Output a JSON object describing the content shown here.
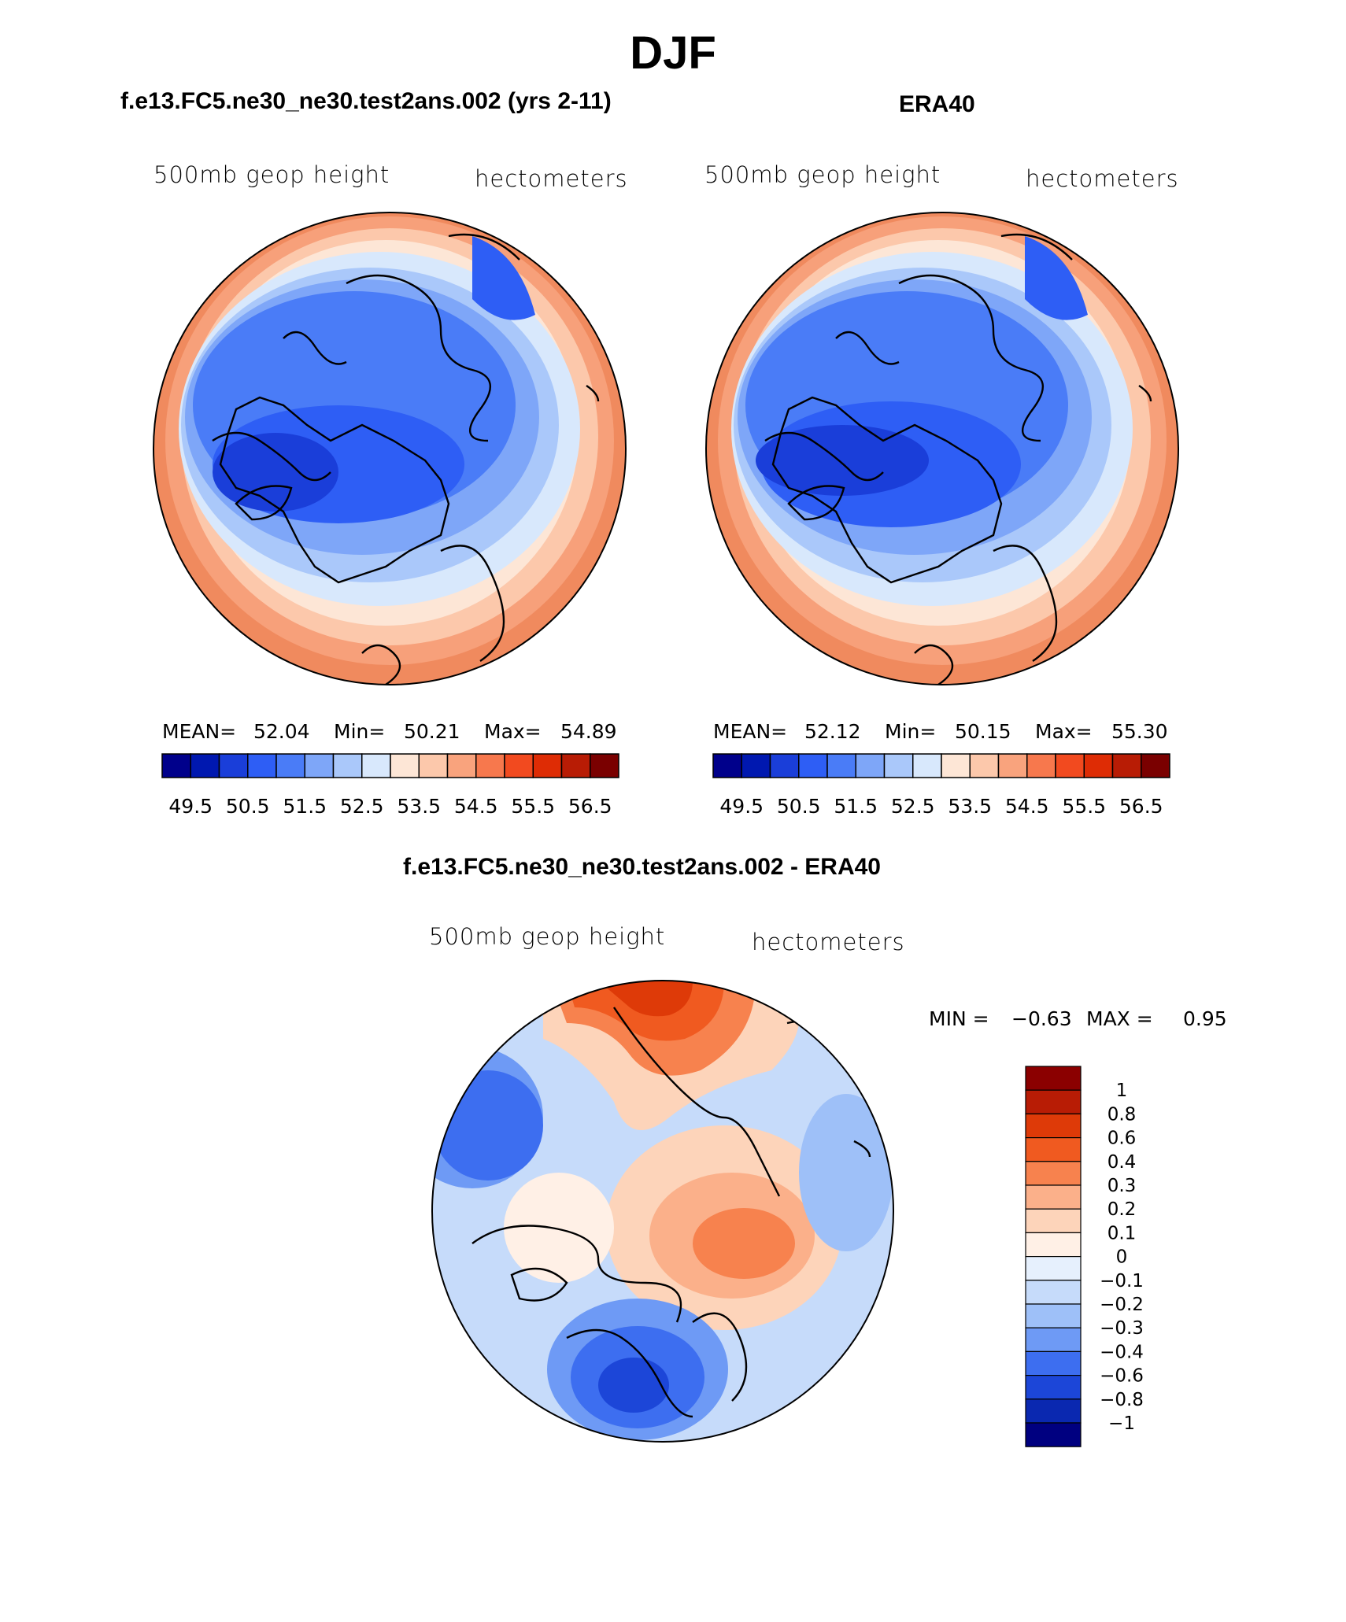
{
  "figure": {
    "title": "DJF",
    "diff_title": "f.e13.FC5.ne30_ne30.test2ans.002 - ERA40"
  },
  "panels": [
    {
      "title": "f.e13.FC5.ne30_ne30.test2ans.002 (yrs 2-11)",
      "variable": "500mb geop height",
      "units": "hectometers",
      "stats": {
        "mean_label": "MEAN=",
        "mean": "52.04",
        "min_label": "Min=",
        "min": "50.21",
        "max_label": "Max=",
        "max": "54.89"
      }
    },
    {
      "title": "ERA40",
      "variable": "500mb geop height",
      "units": "hectometers",
      "stats": {
        "mean_label": "MEAN=",
        "mean": "52.12",
        "min_label": "Min=",
        "min": "50.15",
        "max_label": "Max=",
        "max": "55.30"
      }
    },
    {
      "title": "f.e13.FC5.ne30_ne30.test2ans.002 - ERA40",
      "variable": "500mb geop height",
      "units": "hectometers",
      "stats": {
        "min_label": "MIN =",
        "min": "−0.63",
        "max_label": "MAX =",
        "max": "0.95"
      }
    }
  ],
  "colorbar_abs": {
    "tick_labels": [
      "49.5",
      "50.5",
      "51.5",
      "52.5",
      "53.5",
      "54.5",
      "55.5",
      "56.5"
    ],
    "colors": [
      "#00008b",
      "#0018b0",
      "#1a3ed9",
      "#2e5ef5",
      "#4a7cf7",
      "#7ea6f8",
      "#aac8fa",
      "#d8e8fc",
      "#fde6d6",
      "#fcc8ab",
      "#f9a37d",
      "#f7784d",
      "#f24a1f",
      "#de2c05",
      "#b81c05",
      "#7a0000"
    ]
  },
  "colorbar_diff": {
    "tick_labels": [
      "1",
      "0.8",
      "0.6",
      "0.4",
      "0.3",
      "0.2",
      "0.1",
      "0",
      "−0.1",
      "−0.2",
      "−0.3",
      "−0.4",
      "−0.6",
      "−0.8",
      "−1"
    ],
    "colors": [
      "#8b0000",
      "#b81c05",
      "#de3a08",
      "#f05a20",
      "#f7824e",
      "#fbb08a",
      "#fdd4ba",
      "#fff0e6",
      "#e6f0fd",
      "#c6dbfa",
      "#9ec0f8",
      "#6e9af5",
      "#3d6ef0",
      "#1c46d8",
      "#0a28b0",
      "#000080"
    ]
  },
  "colors": {
    "coast": "#000000"
  }
}
